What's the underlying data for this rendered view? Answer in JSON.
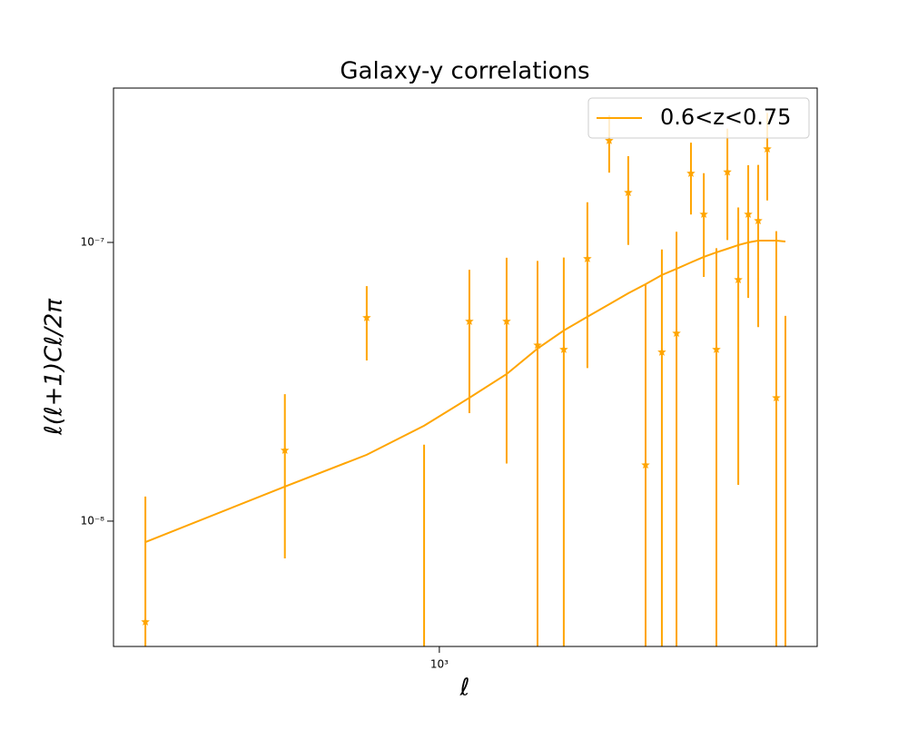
{
  "chart_data": {
    "type": "errorbar",
    "title": "Galaxy-y correlations",
    "xlabel": "ℓ",
    "ylabel": "ℓ(ℓ+1)Cℓ/2π",
    "xscale": "log",
    "yscale": "log",
    "legend": "upper right",
    "xlim": [
      198,
      6540
    ],
    "ylim": [
      3.55e-09,
      3.58e-07
    ],
    "xticks": [
      {
        "value": 1000,
        "label": "10³"
      }
    ],
    "yticks": [
      {
        "value": 1e-08,
        "label": "10⁻⁸"
      },
      {
        "value": 1e-07,
        "label": "10⁻⁷"
      }
    ],
    "x": [
      232,
      464,
      697,
      927,
      1161,
      1397,
      1629,
      1856,
      2087,
      2326,
      2557,
      2787,
      3022,
      3250,
      3492,
      3722,
      3963,
      4185,
      4418,
      4642,
      4878,
      5103,
      5337,
      5584
    ],
    "series": [
      {
        "name": "0.6<z<0.75",
        "color": "#ffa500",
        "values": [
          8.41e-09,
          1.33e-08,
          1.73e-08,
          2.2e-08,
          2.77e-08,
          3.37e-08,
          4.16e-08,
          4.83e-08,
          5.41e-08,
          6e-08,
          6.57e-08,
          7.08e-08,
          7.64e-08,
          8.04e-08,
          8.48e-08,
          8.87e-08,
          9.21e-08,
          9.49e-08,
          9.78e-08,
          1e-07,
          1.015e-07,
          1.015e-07,
          1.015e-07,
          1.0075e-07
        ]
      }
    ],
    "points": {
      "color": "#ffa500",
      "values": [
        4.35e-09,
        1.795e-08,
        5.37e-08,
        -1e-08,
        5.21e-08,
        5.21e-08,
        4.28e-08,
        4.13e-08,
        8.74e-08,
        2.32e-07,
        1.51e-07,
        1.59e-08,
        4.04e-08,
        4.72e-08,
        1.77e-07,
        1.262e-07,
        4.13e-08,
        1.79e-07,
        7.35e-08,
        1.262e-07,
        1.197e-07,
        2.165e-07,
        2.77e-08,
        -2e-08
      ],
      "errors": [
        7.9e-09,
        1.06e-08,
        1.6e-08,
        2.88e-08,
        2.77e-08,
        3.6e-08,
        4.3e-08,
        4.7e-08,
        5.2e-08,
        5.4e-08,
        5.3e-08,
        5.5e-08,
        5.4e-08,
        6.2e-08,
        5.1e-08,
        5.1e-08,
        5.4e-08,
        7.7e-08,
        6e-08,
        6.3e-08,
        7e-08,
        7.5e-08,
        8.2e-08,
        7.45e-08
      ]
    }
  }
}
